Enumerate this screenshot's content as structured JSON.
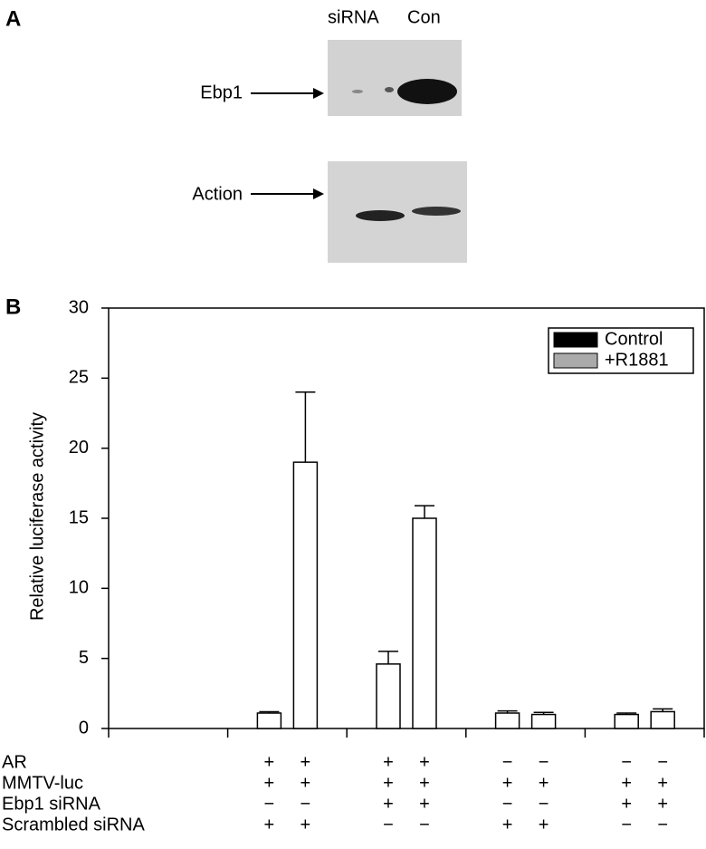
{
  "panel_a": {
    "label": "A",
    "lanes": [
      "siRNA",
      "Con"
    ],
    "blots": [
      {
        "label": "Ebp1"
      },
      {
        "label": "Action"
      }
    ]
  },
  "chart_data": {
    "type": "bar",
    "panel_label": "B",
    "ylabel": "Relative luciferase activity",
    "categories": [
      null,
      null,
      null,
      null
    ],
    "bar_color": "#ffffff",
    "series": [
      {
        "name": "Control",
        "color": "#000000",
        "values": [
          1.1,
          4.6,
          1.1,
          1.0
        ],
        "errors": [
          0.1,
          0.9,
          0.15,
          0.1
        ]
      },
      {
        "name": "+R1881",
        "color": "#aaaaaa",
        "values": [
          19,
          15,
          1.0,
          1.2
        ],
        "errors": [
          5.0,
          0.9,
          0.15,
          0.2
        ]
      }
    ],
    "ylim": [
      0,
      30
    ],
    "yticks": [
      0,
      5,
      10,
      15,
      20,
      25,
      30
    ],
    "legend": "upper right",
    "conditions": [
      {
        "label": "AR",
        "signs": [
          "+",
          "+",
          "+",
          "+",
          "−",
          "−",
          "−",
          "−"
        ]
      },
      {
        "label": "MMTV-luc",
        "signs": [
          "+",
          "+",
          "+",
          "+",
          "+",
          "+",
          "+",
          "+"
        ]
      },
      {
        "label": "Ebp1 siRNA",
        "signs": [
          "−",
          "−",
          "+",
          "+",
          "−",
          "−",
          "+",
          "+"
        ]
      },
      {
        "label": "Scrambled siRNA",
        "signs": [
          "+",
          "+",
          "−",
          "−",
          "+",
          "+",
          "−",
          "−"
        ]
      }
    ]
  }
}
